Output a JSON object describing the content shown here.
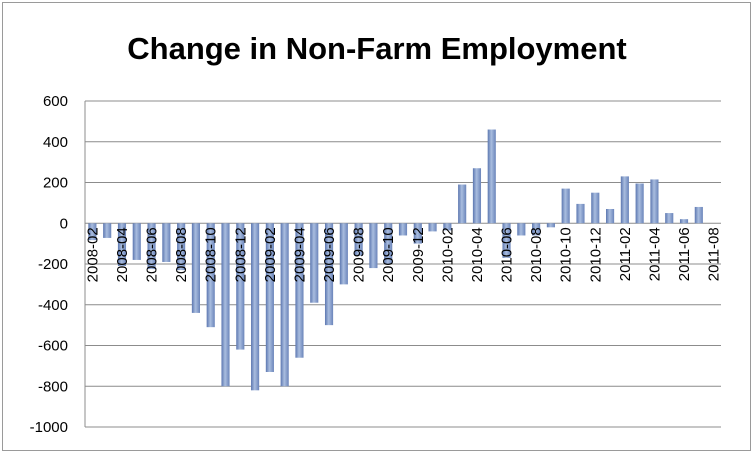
{
  "chart_data": {
    "type": "bar",
    "title": "Change in Non-Farm Employment",
    "xlabel": "",
    "ylabel": "",
    "ylim": [
      -1000,
      600
    ],
    "yticks": [
      600,
      400,
      200,
      0,
      -200,
      -400,
      -600,
      -800,
      -1000
    ],
    "grid": true,
    "legend": "none",
    "bar_color": "#7b93c4",
    "categories": [
      "2008-02",
      "2008-03",
      "2008-04",
      "2008-05",
      "2008-06",
      "2008-07",
      "2008-08",
      "2008-09",
      "2008-10",
      "2008-11",
      "2008-12",
      "2009-01",
      "2009-02",
      "2009-03",
      "2009-04",
      "2009-05",
      "2009-06",
      "2009-07",
      "2009-08",
      "2009-09",
      "2009-10",
      "2009-11",
      "2009-12",
      "2010-01",
      "2010-02",
      "2010-03",
      "2010-04",
      "2010-05",
      "2010-06",
      "2010-07",
      "2010-08",
      "2010-09",
      "2010-10",
      "2010-11",
      "2010-12",
      "2011-01",
      "2011-02",
      "2011-03",
      "2011-04",
      "2011-05",
      "2011-06",
      "2011-07",
      "2011-08"
    ],
    "tick_labels": [
      "2008-02",
      "2008-04",
      "2008-06",
      "2008-08",
      "2008-10",
      "2008-12",
      "2009-02",
      "2009-04",
      "2009-06",
      "2009-08",
      "2009-10",
      "2009-12",
      "2010-02",
      "2010-04",
      "2010-06",
      "2010-08",
      "2010-10",
      "2010-12",
      "2011-02",
      "2011-04",
      "2011-06",
      "2011-08"
    ],
    "values": [
      -83,
      -72,
      -210,
      -180,
      -225,
      -190,
      -230,
      -440,
      -510,
      -800,
      -620,
      -820,
      -730,
      -800,
      -660,
      -390,
      -500,
      -300,
      -160,
      -220,
      -200,
      -60,
      -100,
      -40,
      -35,
      190,
      270,
      460,
      -170,
      -60,
      -60,
      -20,
      170,
      95,
      150,
      70,
      230,
      195,
      215,
      50,
      20,
      80,
      0
    ]
  }
}
